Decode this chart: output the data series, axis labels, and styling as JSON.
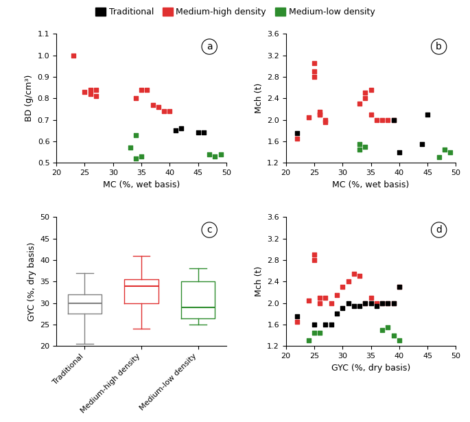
{
  "colors": {
    "traditional": "#000000",
    "medium_high": "#e03030",
    "medium_low": "#2d8c2d"
  },
  "plot_a": {
    "red_x": [
      23,
      25,
      26,
      26,
      27,
      27,
      34,
      35,
      36,
      37,
      38,
      39,
      40
    ],
    "red_y": [
      1.0,
      0.83,
      0.84,
      0.82,
      0.81,
      0.84,
      0.8,
      0.84,
      0.84,
      0.77,
      0.76,
      0.74,
      0.74
    ],
    "black_x": [
      41,
      42,
      45,
      46
    ],
    "black_y": [
      0.65,
      0.66,
      0.64,
      0.64
    ],
    "green_x": [
      33,
      34,
      34,
      35,
      47,
      48,
      49
    ],
    "green_y": [
      0.57,
      0.63,
      0.52,
      0.53,
      0.54,
      0.53,
      0.54
    ],
    "xlabel": "MC (%, wet basis)",
    "ylabel": "BD (g/cm³)",
    "xlim": [
      20,
      50
    ],
    "ylim": [
      0.5,
      1.1
    ],
    "yticks": [
      0.5,
      0.6,
      0.7,
      0.8,
      0.9,
      1.0,
      1.1
    ],
    "xticks": [
      20,
      25,
      30,
      35,
      40,
      45,
      50
    ],
    "label": "a"
  },
  "plot_b": {
    "red_x": [
      22,
      24,
      25,
      25,
      25,
      26,
      26,
      26,
      27,
      27,
      33,
      34,
      34,
      35,
      35,
      36,
      37,
      38,
      39
    ],
    "red_y": [
      1.65,
      2.05,
      3.05,
      2.9,
      2.8,
      2.15,
      2.1,
      2.1,
      2.0,
      1.95,
      2.3,
      2.5,
      2.4,
      2.55,
      2.1,
      2.0,
      2.0,
      2.0,
      2.0
    ],
    "black_x": [
      22,
      39,
      40,
      44,
      45
    ],
    "black_y": [
      1.75,
      2.0,
      1.4,
      1.55,
      2.1
    ],
    "green_x": [
      33,
      33,
      34,
      47,
      48,
      49
    ],
    "green_y": [
      1.45,
      1.55,
      1.5,
      1.3,
      1.45,
      1.4
    ],
    "xlabel": "MC (%, wet basis)",
    "ylabel": "Mch (t)",
    "xlim": [
      20,
      50
    ],
    "ylim": [
      1.2,
      3.6
    ],
    "yticks": [
      1.2,
      1.6,
      2.0,
      2.4,
      2.8,
      3.2,
      3.6
    ],
    "xticks": [
      20,
      25,
      30,
      35,
      40,
      45,
      50
    ],
    "label": "b"
  },
  "plot_c": {
    "traditional": {
      "whislo": 20.5,
      "q1": 27.5,
      "med": 30.0,
      "q3": 32.0,
      "whishi": 37.0,
      "color": "#808080"
    },
    "medium_high": {
      "whislo": 24.0,
      "q1": 30.0,
      "med": 34.0,
      "q3": 35.5,
      "whishi": 41.0,
      "color": "#e03030"
    },
    "medium_low": {
      "whislo": 25.0,
      "q1": 26.5,
      "med": 29.0,
      "q3": 35.0,
      "whishi": 38.0,
      "color": "#2d8c2d"
    },
    "ylabel": "GYC (%, dry basis)",
    "ylim": [
      20,
      50
    ],
    "yticks": [
      20,
      25,
      30,
      35,
      40,
      45,
      50
    ],
    "label": "c"
  },
  "plot_d": {
    "red_x": [
      22,
      23,
      24,
      25,
      26,
      27,
      28,
      29,
      30,
      31,
      32,
      33,
      34,
      35,
      36,
      37,
      38,
      39,
      40
    ],
    "red_y": [
      1.65,
      2.05,
      2.05,
      2.8,
      2.1,
      2.1,
      2.0,
      2.15,
      2.3,
      2.4,
      2.55,
      2.5,
      2.0,
      2.1,
      2.0,
      2.0,
      2.0,
      2.0,
      2.0
    ],
    "black_x": [
      22,
      26,
      28,
      29,
      30,
      31,
      32,
      33,
      34,
      35,
      36,
      37,
      38,
      39,
      40
    ],
    "black_y": [
      1.75,
      1.6,
      1.6,
      1.8,
      1.9,
      2.0,
      2.0,
      2.0,
      2.0,
      2.0,
      2.0,
      2.0,
      2.0,
      2.0,
      2.3
    ],
    "green_x": [
      24,
      25,
      26,
      37,
      38,
      39,
      40
    ],
    "green_y": [
      1.3,
      1.45,
      1.45,
      1.5,
      1.55,
      1.4,
      1.3
    ],
    "xlabel": "GYC (%, dry basis)",
    "ylabel": "Mch (t)",
    "xlim": [
      20,
      50
    ],
    "ylim": [
      1.2,
      3.6
    ],
    "yticks": [
      1.2,
      1.6,
      2.0,
      2.4,
      2.8,
      3.2,
      3.6
    ],
    "xticks": [
      20,
      25,
      30,
      35,
      40,
      45,
      50
    ],
    "label": "d"
  },
  "legend": {
    "traditional": "Traditional",
    "medium_high": "Medium-high density",
    "medium_low": "Medium-low density"
  },
  "figsize": [
    6.85,
    6.15
  ],
  "dpi": 100
}
